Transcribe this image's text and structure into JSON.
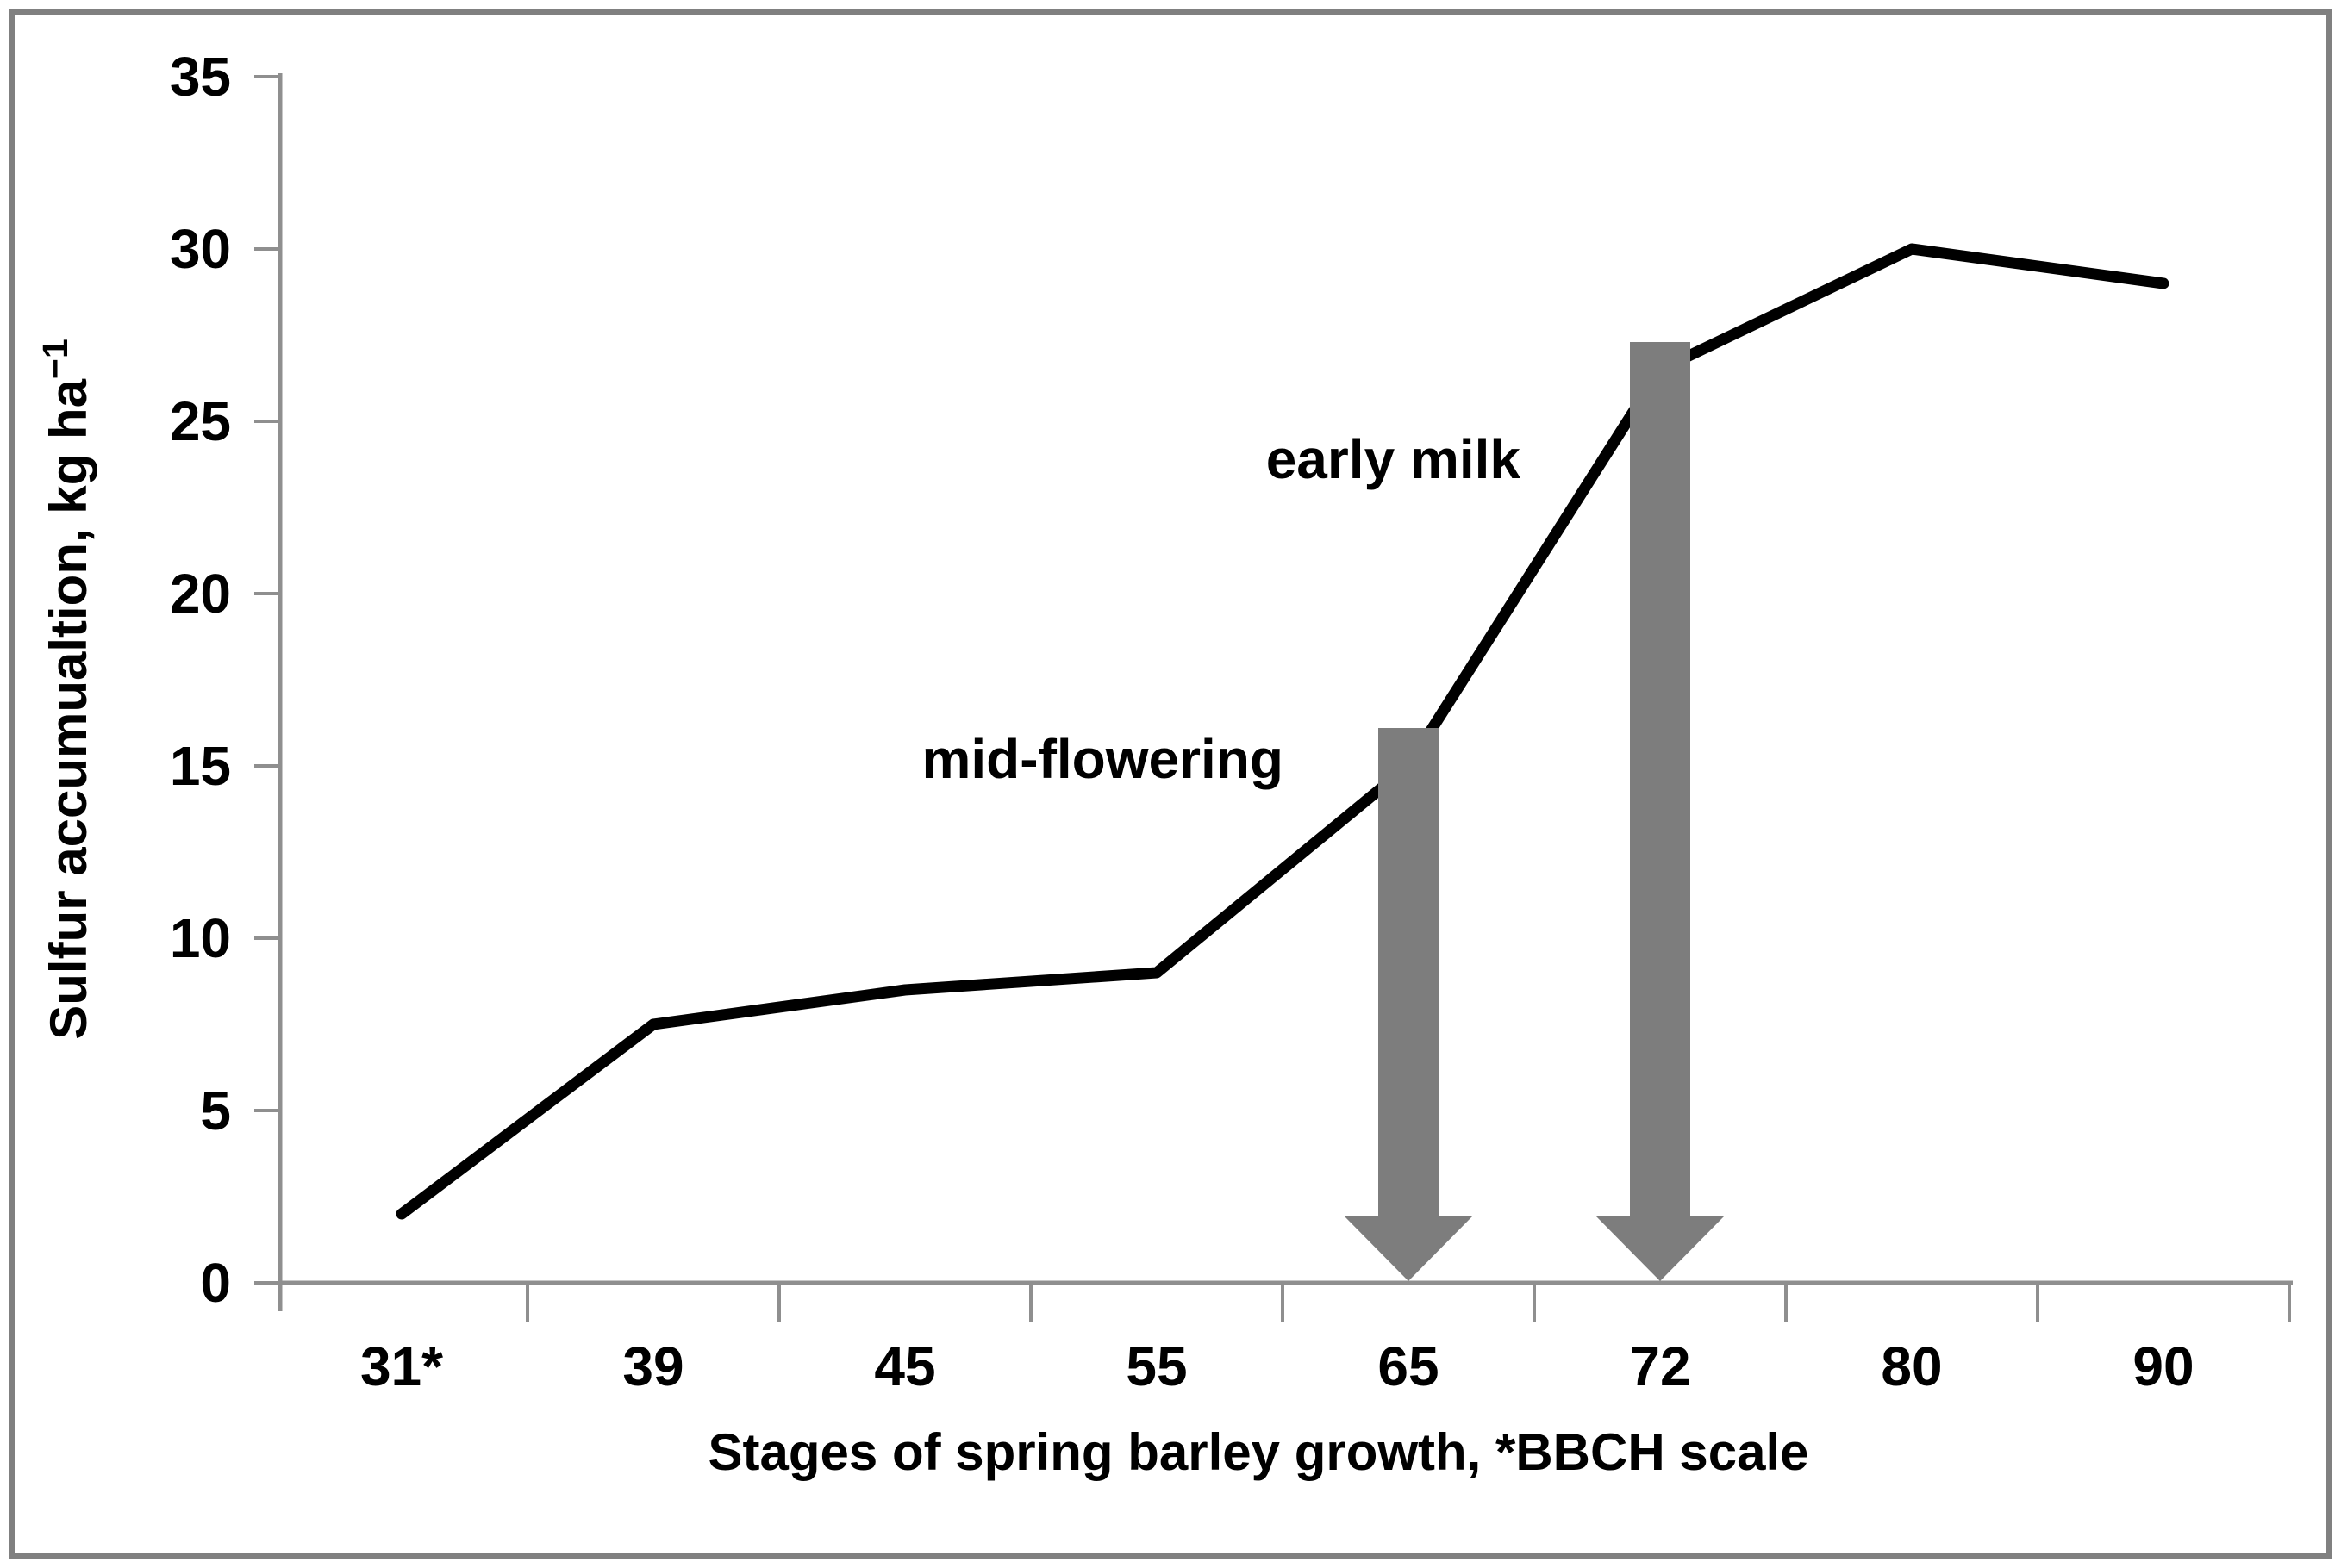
{
  "figure": {
    "background": "#ffffff",
    "border_color": "#808080"
  },
  "chart_data": {
    "type": "line",
    "categories": [
      "31*",
      "39",
      "45",
      "55",
      "65",
      "72",
      "80",
      "90"
    ],
    "series": [
      {
        "name": "Sulfur accumulation",
        "values": [
          2,
          7.5,
          8.5,
          9,
          15,
          26.5,
          30,
          29
        ]
      }
    ],
    "title": "",
    "xlabel": "Stages of spring barley growth, *BBCH scale",
    "ylabel": "Sulfur accumualtion, kg ha⁻¹",
    "ylabel_parts": {
      "base": "Sulfur accumualtion, kg ha",
      "sup": "−1"
    },
    "ylim": [
      0,
      35
    ],
    "yticks": [
      0,
      5,
      10,
      15,
      20,
      25,
      30,
      35
    ],
    "grid": false,
    "legend": "none",
    "line_color": "#000000",
    "axis_color": "#8f8f8f",
    "text_color": "#000000",
    "arrow_color": "#7d7d7d",
    "arrows": [
      {
        "stage": "65",
        "label": "mid-flowering",
        "top_value": 16.1
      },
      {
        "stage": "72",
        "label": "early milk",
        "top_value": 27.3
      }
    ],
    "annotations": [
      {
        "text": "mid-flowering",
        "stage": "65",
        "value": 15.2,
        "dx": -145,
        "anchor": "end"
      },
      {
        "text": "early milk",
        "stage": "72",
        "value": 23.9,
        "dx": -162,
        "anchor": "end"
      }
    ]
  }
}
